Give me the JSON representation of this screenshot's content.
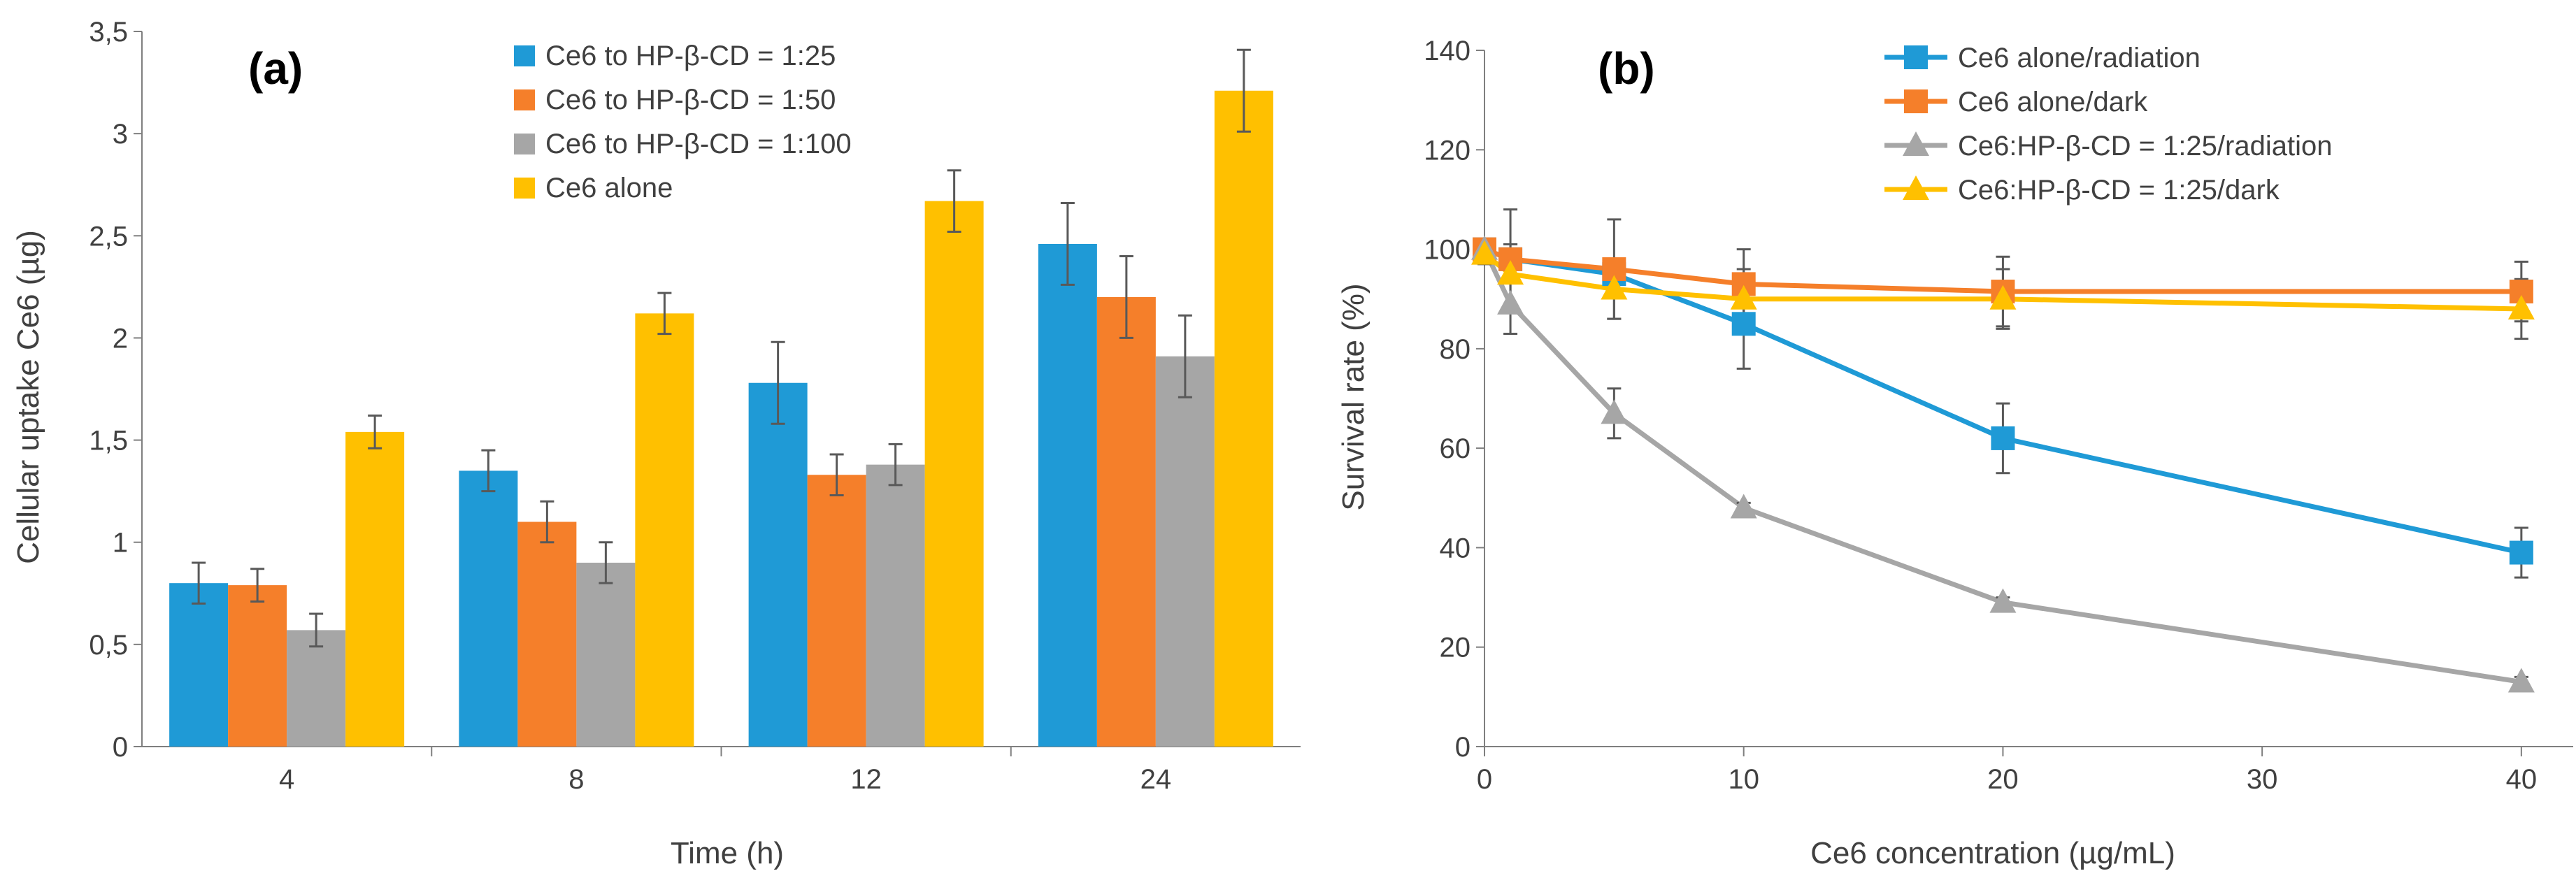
{
  "chart_data": [
    {
      "type": "bar",
      "panel_label": "(a)",
      "xlabel": "Time (h)",
      "ylabel": "Cellular uptake Ce6 (µg)",
      "categories": [
        "4",
        "8",
        "12",
        "24"
      ],
      "ylim": [
        0,
        3.5
      ],
      "yticks": [
        0,
        0.5,
        1,
        1.5,
        2,
        2.5,
        3,
        3.5
      ],
      "ytick_labels": [
        "0",
        "0,5",
        "1",
        "1,5",
        "2",
        "2,5",
        "3",
        "3,5"
      ],
      "grid": false,
      "legend_position": "top",
      "series": [
        {
          "name": "Ce6 to HP-β-CD = 1:25",
          "color": "#1F9AD6",
          "values": [
            0.8,
            1.35,
            1.78,
            2.46
          ],
          "errors": [
            0.1,
            0.1,
            0.2,
            0.2
          ]
        },
        {
          "name": "Ce6 to HP-β-CD = 1:50",
          "color": "#F57F2A",
          "values": [
            0.79,
            1.1,
            1.33,
            2.2
          ],
          "errors": [
            0.08,
            0.1,
            0.1,
            0.2
          ]
        },
        {
          "name": "Ce6 to HP-β-CD = 1:100",
          "color": "#A6A6A6",
          "values": [
            0.57,
            0.9,
            1.38,
            1.91
          ],
          "errors": [
            0.08,
            0.1,
            0.1,
            0.2
          ]
        },
        {
          "name": "Ce6 alone",
          "color": "#FFC000",
          "values": [
            1.54,
            2.12,
            2.67,
            3.21
          ],
          "errors": [
            0.08,
            0.1,
            0.15,
            0.2
          ]
        }
      ]
    },
    {
      "type": "line",
      "panel_label": "(b)",
      "xlabel": "Ce6 concentration (µg/mL)",
      "ylabel": "Survival rate (%)",
      "x": [
        0,
        1,
        5,
        10,
        20,
        40
      ],
      "xlim": [
        0,
        42
      ],
      "xticks": [
        0,
        10,
        20,
        30,
        40
      ],
      "ylim": [
        0,
        140
      ],
      "yticks": [
        0,
        20,
        40,
        60,
        80,
        100,
        120,
        140
      ],
      "grid": false,
      "legend_position": "top-right",
      "series": [
        {
          "name": "Ce6 alone/radiation",
          "color": "#1F9AD6",
          "marker": "square",
          "values": [
            100,
            98,
            95,
            85,
            62,
            39
          ],
          "errors": [
            2,
            3,
            3,
            9,
            7,
            5
          ]
        },
        {
          "name": "Ce6 alone/dark",
          "color": "#F57F2A",
          "marker": "square",
          "values": [
            100,
            98,
            96,
            93,
            91.5,
            91.5
          ],
          "errors": [
            2,
            10,
            10,
            7,
            7,
            6
          ]
        },
        {
          "name": "Ce6:HP-β-CD = 1:25/radiation",
          "color": "#A6A6A6",
          "marker": "triangle",
          "values": [
            100,
            89,
            67,
            48,
            29,
            13
          ],
          "errors": [
            2,
            6,
            5,
            1,
            1,
            1
          ]
        },
        {
          "name": "Ce6:HP-β-CD = 1:25/dark",
          "color": "#FFC000",
          "marker": "triangle",
          "values": [
            99,
            95,
            92,
            90,
            90,
            88
          ],
          "errors": [
            2,
            6,
            6,
            6,
            6,
            6
          ]
        }
      ]
    }
  ]
}
